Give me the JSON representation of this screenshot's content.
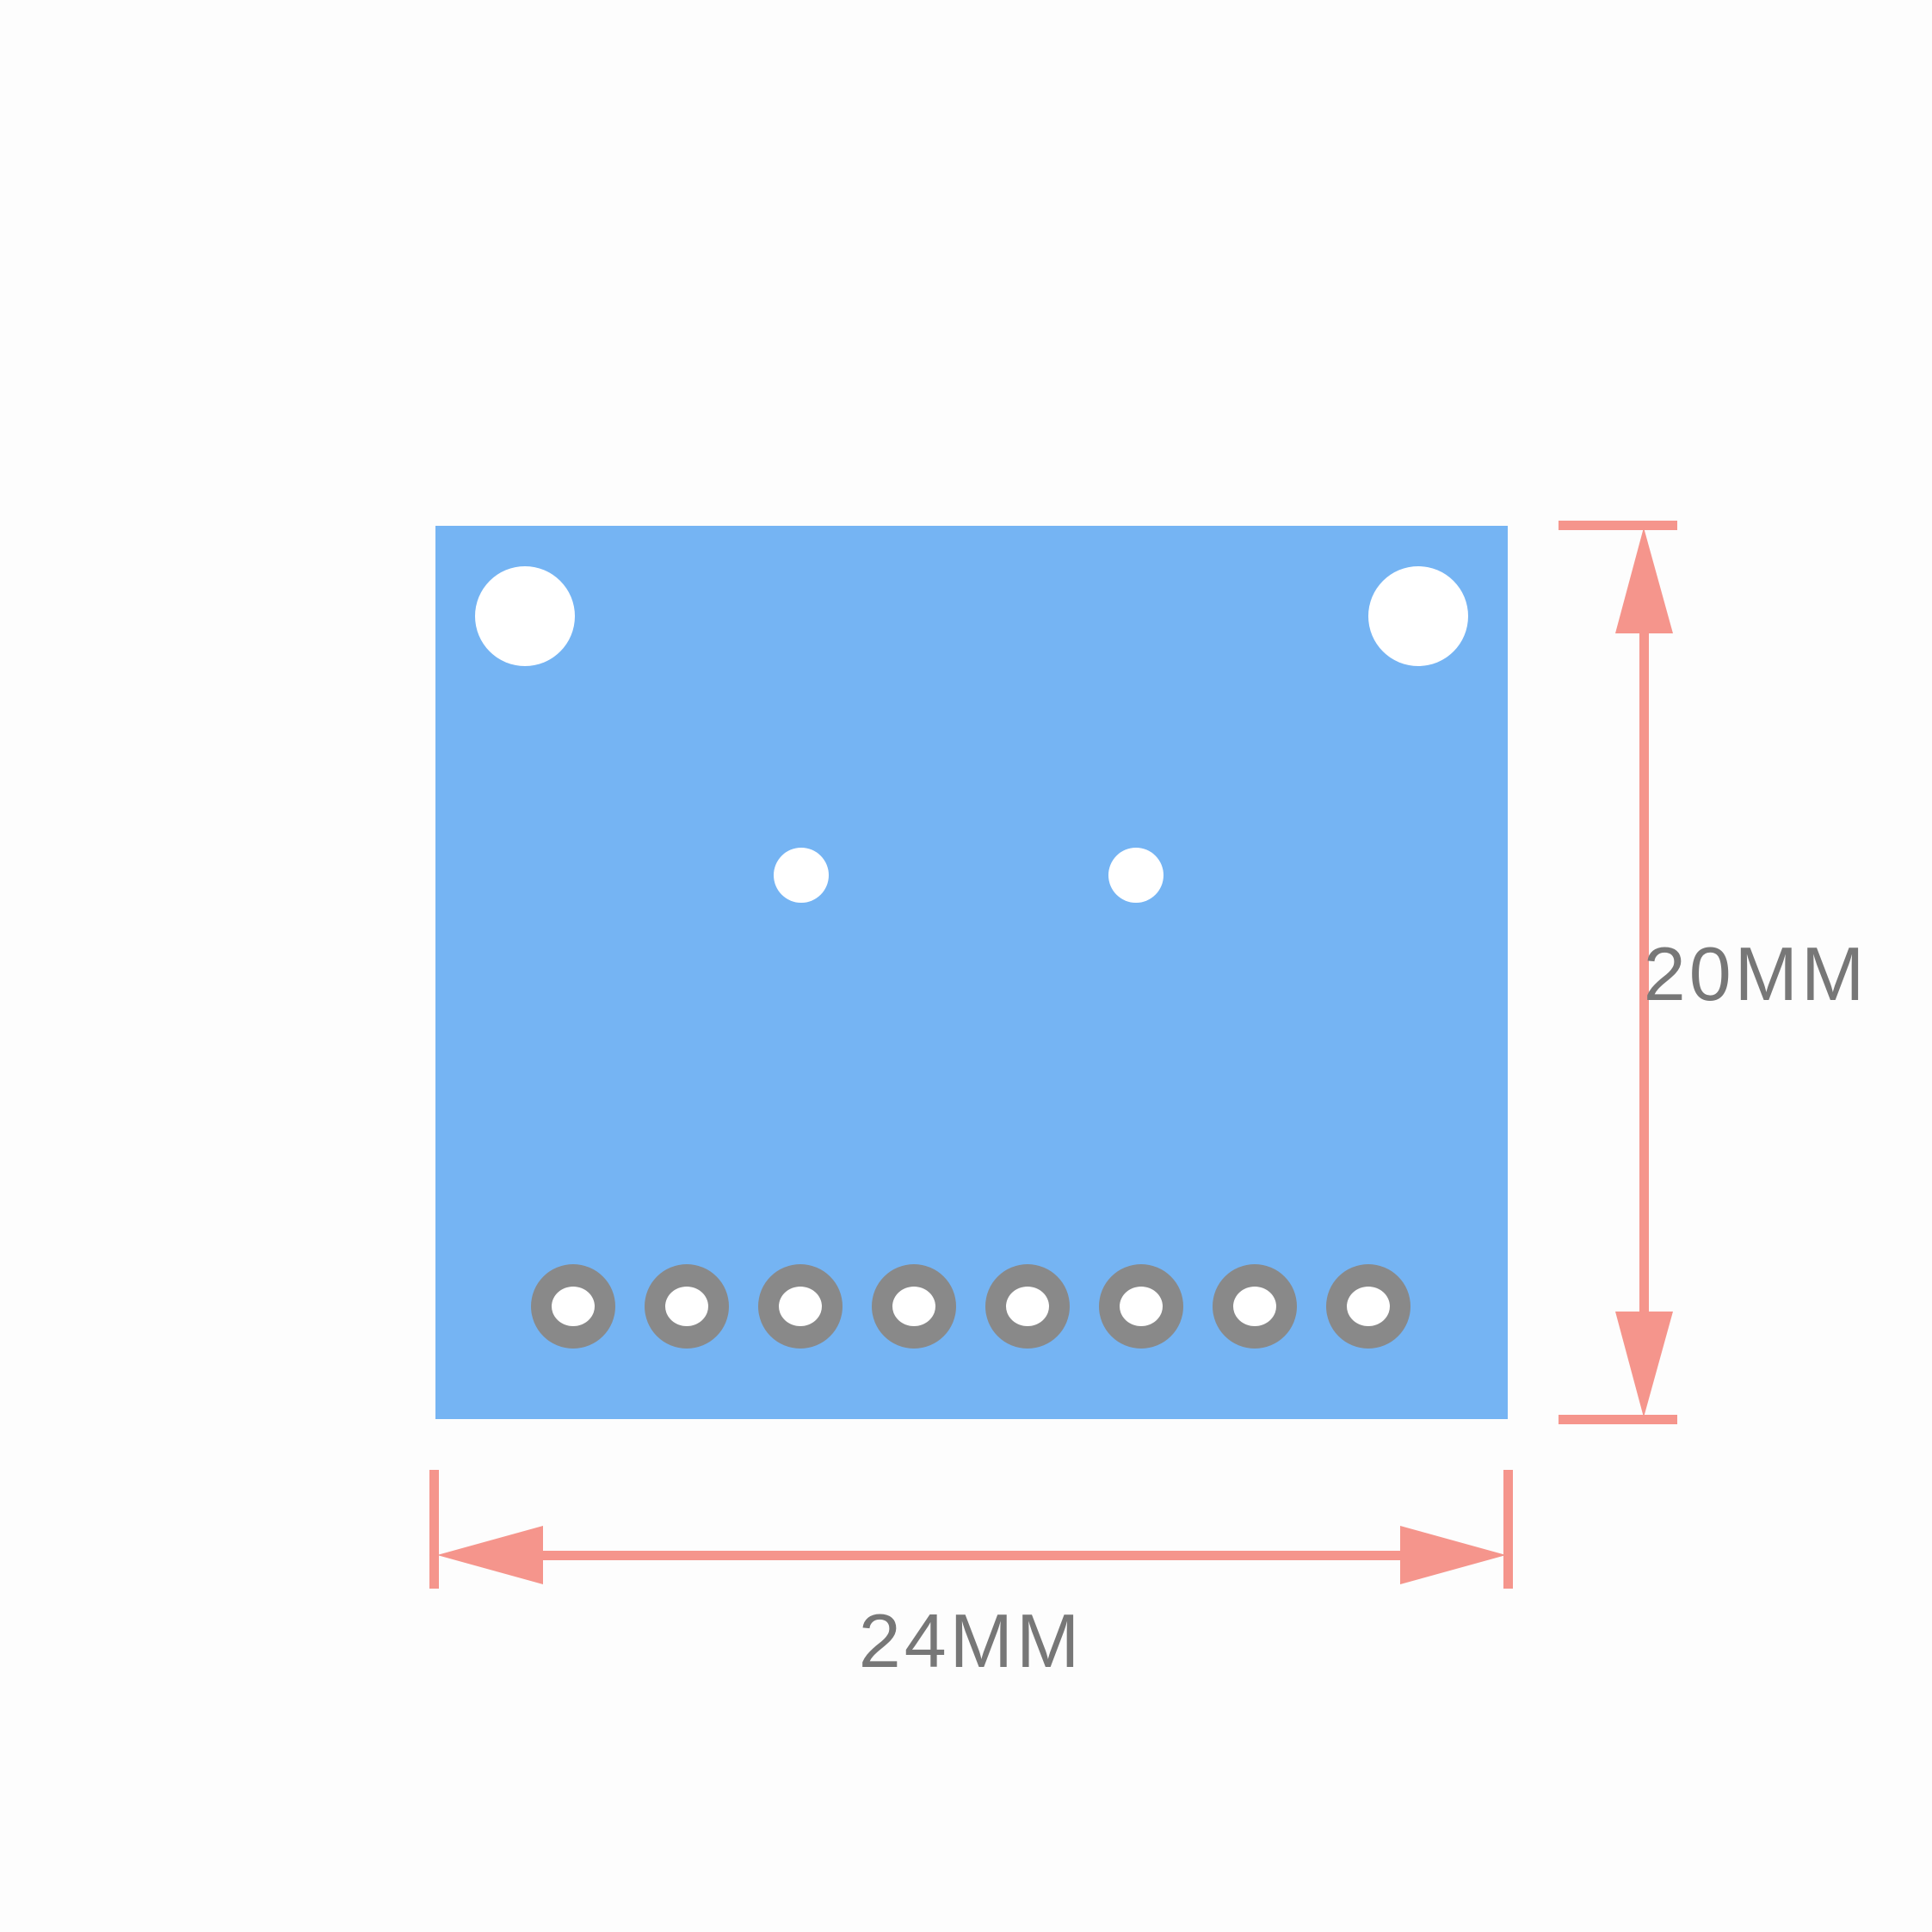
{
  "dimensions": {
    "width_label": "24MM",
    "height_label": "20MM"
  },
  "board": {
    "pin_count": 8
  },
  "colors": {
    "board": "#75b4f3",
    "dimension_line": "#f5958c",
    "label_text": "#777777",
    "pin_ring": "#898989",
    "hole": "#ffffff",
    "background": "#fdfdfd"
  }
}
